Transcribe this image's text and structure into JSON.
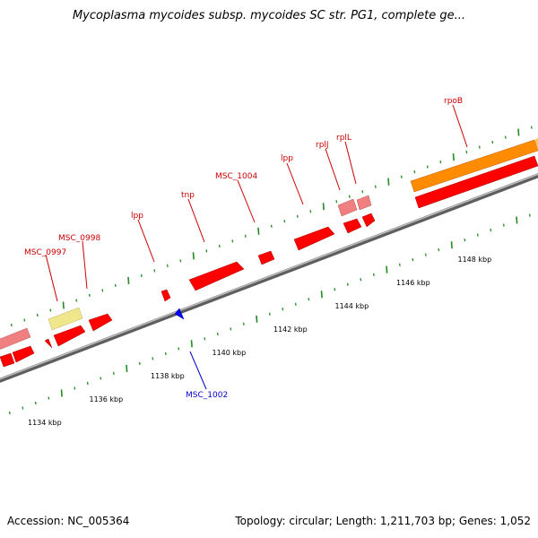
{
  "title": "Mycoplasma mycoides subsp. mycoides SC str. PG1, complete ge...",
  "footer": {
    "accession": "Accession: NC_005364",
    "summary": "Topology: circular; Length: 1,211,703 bp; Genes: 1,052"
  },
  "scale": {
    "unit": "kbp",
    "tick_labels": [
      "1134 kbp",
      "1136 kbp",
      "1138 kbp",
      "1140 kbp",
      "1142 kbp",
      "1144 kbp",
      "1146 kbp",
      "1148 kbp"
    ]
  },
  "gene_labels": {
    "msc_0997": "MSC_0997",
    "msc_0998": "MSC_0998",
    "lpp_1": "lpp",
    "tnp": "tnp",
    "msc_1004": "MSC_1004",
    "lpp_2": "lpp",
    "rplJ": "rplJ",
    "rplL": "rplL",
    "rpoB": "rpoB",
    "msc_1002": "MSC_1002"
  },
  "colors": {
    "forward_gene": "#ff0000",
    "forward_gene_light": "#f08080",
    "pseudo_gene": "#f0e68c",
    "highlight_gene": "#ff8c00",
    "reverse_gene": "#0000ff",
    "forward_label": "#cc0000",
    "reverse_label": "#0000cc",
    "backbone": "#808080",
    "tick": "#228b22"
  }
}
